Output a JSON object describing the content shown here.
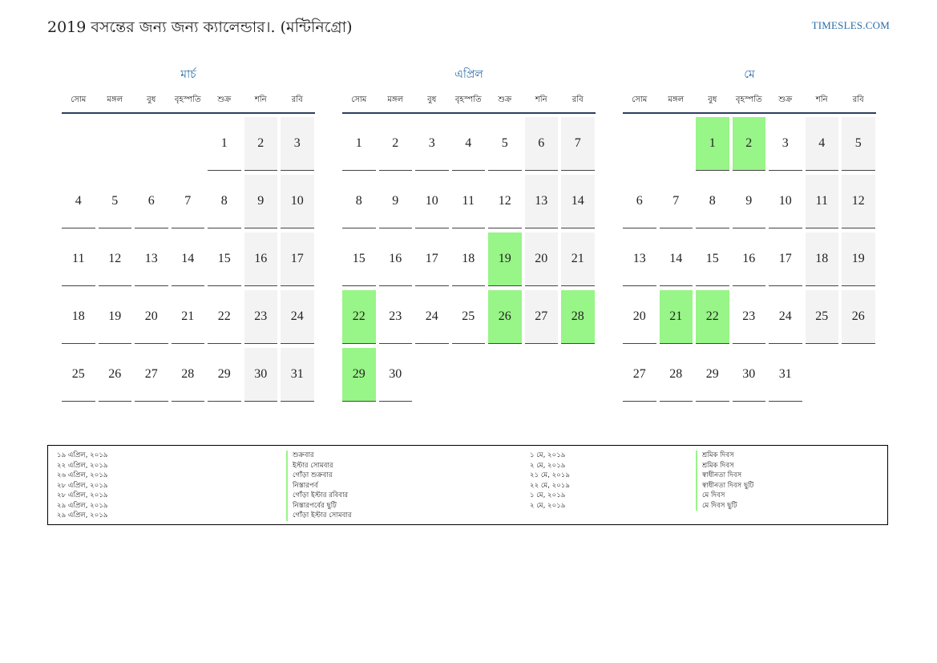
{
  "header": {
    "title": "2019 বসন্তের জন্য জন্য ক্যালেন্ডার।. (মন্টিনিগ্রো)",
    "site": "TIMESLES.COM"
  },
  "colors": {
    "accent": "#2b6ca8",
    "holiday": "#98f587",
    "weekend": "#f3f3f3"
  },
  "weekdays": [
    "সোম",
    "মঙ্গল",
    "বুধ",
    "বৃহস্পতি",
    "শুক্র",
    "শনি",
    "রবি"
  ],
  "months": [
    {
      "name": "মার্চ",
      "start_offset": 4,
      "days": 31,
      "holidays": []
    },
    {
      "name": "এপ্রিল",
      "start_offset": 0,
      "days": 30,
      "holidays": [
        19,
        22,
        26,
        28,
        29
      ]
    },
    {
      "name": "মে",
      "start_offset": 2,
      "days": 31,
      "holidays": [
        1,
        2,
        21,
        22
      ]
    }
  ],
  "legend": {
    "left": [
      {
        "date": "১৯ এপ্রিল, ২০১৯",
        "name": "শুক্রবার"
      },
      {
        "date": "২২ এপ্রিল, ২০১৯",
        "name": "ইস্টার সোমবার"
      },
      {
        "date": "২৬ এপ্রিল, ২০১৯",
        "name": "গোঁড়া শুক্রবার"
      },
      {
        "date": "২৮ এপ্রিল, ২০১৯",
        "name": "নিস্তারপর্ব"
      },
      {
        "date": "২৮ এপ্রিল, ২০১৯",
        "name": "গোঁড়া ইস্টার রবিবার"
      },
      {
        "date": "২৯ এপ্রিল, ২০১৯",
        "name": "নিস্তারপর্বের ছুটি"
      },
      {
        "date": "২৯ এপ্রিল, ২০১৯",
        "name": "গোঁড়া ইস্টার সোমবার"
      }
    ],
    "right": [
      {
        "date": "১ মে, ২০১৯",
        "name": "শ্রমিক দিবস"
      },
      {
        "date": "২ মে, ২০১৯",
        "name": "শ্রমিক দিবস"
      },
      {
        "date": "২১ মে, ২০১৯",
        "name": "স্বাধীনতা দিবস"
      },
      {
        "date": "২২ মে, ২০১৯",
        "name": "স্বাধীনতা দিবস ছুটি"
      },
      {
        "date": "১ মে, ২০১৯",
        "name": "মে দিবস"
      },
      {
        "date": "২ মে, ২০১৯",
        "name": "মে দিবস ছুটি"
      }
    ]
  }
}
